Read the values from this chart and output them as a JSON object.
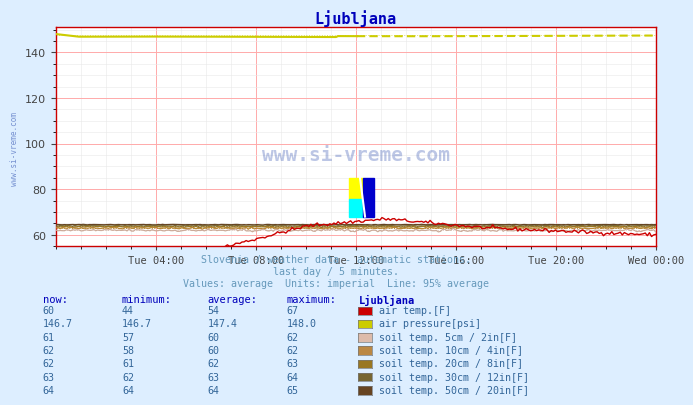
{
  "title": "Ljubljana",
  "bg_color": "#ddeeff",
  "plot_bg_color": "#ffffff",
  "title_color": "#0000bb",
  "axis_color": "#cc0000",
  "grid_color_major": "#ffaaaa",
  "grid_color_minor": "#e8e8e8",
  "x_tick_labels": [
    "Tue 04:00",
    "Tue 08:00",
    "Tue 12:00",
    "Tue 16:00",
    "Tue 20:00",
    "Wed 00:00"
  ],
  "ylim_low": 55,
  "ylim_high": 151,
  "yticks": [
    60,
    80,
    100,
    120,
    140
  ],
  "subtitle1": "Slovenia / weather data - automatic stations.",
  "subtitle2": "last day / 5 minutes.",
  "subtitle3": "Values: average  Units: imperial  Line: 95% average",
  "subtitle_color": "#6699bb",
  "watermark": "www.si-vreme.com",
  "watermark_color": "#2244aa",
  "series_air_temp_color": "#cc0000",
  "series_air_pressure_color": "#cccc00",
  "series_soil_5cm_color": "#ccaa99",
  "series_soil_10cm_color": "#bb8833",
  "series_soil_20cm_color": "#997722",
  "series_soil_30cm_color": "#776633",
  "series_soil_50cm_color": "#664422",
  "table_header_color": "#0000bb",
  "table_data_color": "#336699",
  "swatch_air_temp": "#cc0000",
  "swatch_air_pressure": "#cccc00",
  "swatch_soil_5cm": "#ddbbaa",
  "swatch_soil_10cm": "#bb8844",
  "swatch_soil_20cm": "#997722",
  "swatch_soil_30cm": "#776633",
  "swatch_soil_50cm": "#664422",
  "rows": [
    [
      "60",
      "44",
      "54",
      "67",
      "air temp.[F]"
    ],
    [
      "146.7",
      "146.7",
      "147.4",
      "148.0",
      "air pressure[psi]"
    ],
    [
      "61",
      "57",
      "60",
      "62",
      "soil temp. 5cm / 2in[F]"
    ],
    [
      "62",
      "58",
      "60",
      "62",
      "soil temp. 10cm / 4in[F]"
    ],
    [
      "62",
      "61",
      "62",
      "63",
      "soil temp. 20cm / 8in[F]"
    ],
    [
      "63",
      "62",
      "63",
      "64",
      "soil temp. 30cm / 12in[F]"
    ],
    [
      "64",
      "64",
      "64",
      "65",
      "soil temp. 50cm / 20in[F]"
    ]
  ],
  "col_headers": [
    "now:",
    "minimum:",
    "average:",
    "maximum:",
    "Ljubljana"
  ],
  "icon_yellow": "#ffff00",
  "icon_cyan": "#00ffff",
  "icon_blue": "#0000cc",
  "icon_gray": "#aaaaaa"
}
